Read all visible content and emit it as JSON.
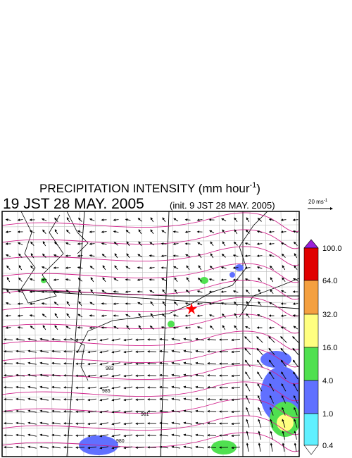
{
  "header": {
    "title": "PRECIPITATION INTENSITY (mm hour",
    "title_sup": "-1",
    "title_end": ")",
    "time": "19 JST 28 MAY. 2005",
    "init": "(init. 9 JST 28 MAY. 2005)"
  },
  "vector_scale": {
    "label": "20 ms",
    "label_sup": "-1"
  },
  "colorbar": {
    "labels": [
      "100.0",
      "64.0",
      "32.0",
      "16.0",
      "4.0",
      "1.0",
      "0.4"
    ],
    "colors": [
      "#9a20d8",
      "#e00000",
      "#f4a040",
      "#ffff80",
      "#50e050",
      "#6070ff",
      "#60f0ff",
      "#ffffff"
    ]
  },
  "isobar_labels": [
    "983",
    "985",
    "981",
    "980"
  ]
}
